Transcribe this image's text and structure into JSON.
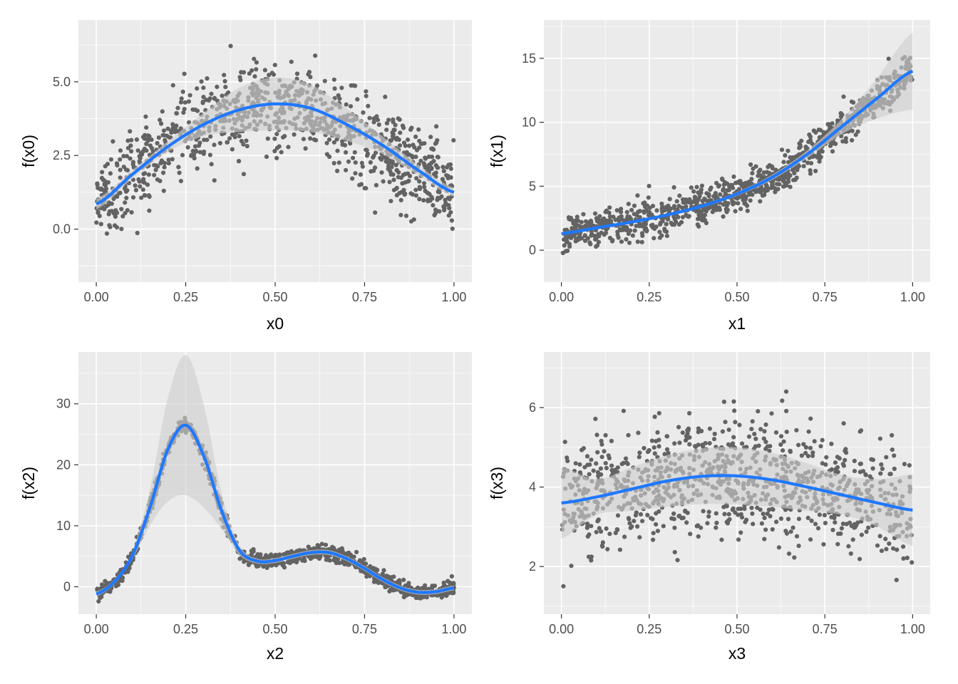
{
  "colors": {
    "panel_bg": "#EBEBEB",
    "grid_major": "#FFFFFF",
    "points": "#636363",
    "smooth_line": "#1F78FF",
    "ci_band": "#CFCFCF",
    "tick_text": "#4D4D4D",
    "tick_mark": "#333333"
  },
  "chart_data": [
    {
      "type": "scatter",
      "xlabel": "x0",
      "ylabel": "f(x0)",
      "xlim": [
        -0.05,
        1.05
      ],
      "ylim": [
        -1.8,
        7.1
      ],
      "x_ticks": [
        0,
        0.25,
        0.5,
        0.75,
        1
      ],
      "x_tick_labels": [
        "0.00",
        "0.25",
        "0.50",
        "0.75",
        "1.00"
      ],
      "y_ticks": [
        0,
        2.5,
        5
      ],
      "y_tick_labels": [
        "0.0",
        "2.5",
        "5.0"
      ],
      "n_points": 1000,
      "grid": true,
      "point_spread_sd": 0.75,
      "smooth": {
        "method": "loess",
        "x": [
          0,
          0.1,
          0.2,
          0.3,
          0.4,
          0.5,
          0.6,
          0.7,
          0.8,
          0.9,
          1.0
        ],
        "y": [
          0.85,
          1.85,
          2.8,
          3.55,
          4.05,
          4.25,
          4.1,
          3.55,
          2.85,
          2.0,
          1.25
        ],
        "ci_halfwidth": [
          0.18,
          0.15,
          0.18,
          0.4,
          0.75,
          0.9,
          0.8,
          0.55,
          0.3,
          0.18,
          0.15
        ]
      }
    },
    {
      "type": "scatter",
      "xlabel": "x1",
      "ylabel": "f(x1)",
      "xlim": [
        -0.05,
        1.05
      ],
      "ylim": [
        -2.5,
        18.0
      ],
      "x_ticks": [
        0,
        0.25,
        0.5,
        0.75,
        1
      ],
      "x_tick_labels": [
        "0.00",
        "0.25",
        "0.50",
        "0.75",
        "1.00"
      ],
      "y_ticks": [
        0,
        5,
        10,
        15
      ],
      "y_tick_labels": [
        "0",
        "5",
        "10",
        "15"
      ],
      "n_points": 1000,
      "grid": true,
      "point_spread_sd": 0.7,
      "smooth": {
        "method": "loess",
        "x": [
          0,
          0.1,
          0.2,
          0.3,
          0.4,
          0.5,
          0.6,
          0.7,
          0.8,
          0.9,
          1.0
        ],
        "y": [
          1.3,
          1.75,
          2.2,
          2.75,
          3.45,
          4.4,
          5.7,
          7.5,
          9.7,
          11.9,
          14.0
        ],
        "ci_halfwidth": [
          0.12,
          0.1,
          0.1,
          0.1,
          0.12,
          0.15,
          0.2,
          0.3,
          0.6,
          1.6,
          3.0
        ]
      }
    },
    {
      "type": "scatter",
      "xlabel": "x2",
      "ylabel": "f(x2)",
      "xlim": [
        -0.05,
        1.05
      ],
      "ylim": [
        -4.5,
        38.5
      ],
      "x_ticks": [
        0,
        0.25,
        0.5,
        0.75,
        1
      ],
      "x_tick_labels": [
        "0.00",
        "0.25",
        "0.50",
        "0.75",
        "1.00"
      ],
      "y_ticks": [
        0,
        10,
        20,
        30
      ],
      "y_tick_labels": [
        "0",
        "10",
        "20",
        "30"
      ],
      "n_points": 1000,
      "grid": true,
      "point_spread_sd": 0.6,
      "smooth": {
        "method": "loess",
        "x": [
          0,
          0.05,
          0.1,
          0.15,
          0.2,
          0.25,
          0.3,
          0.35,
          0.4,
          0.45,
          0.5,
          0.55,
          0.6,
          0.65,
          0.7,
          0.75,
          0.8,
          0.85,
          0.9,
          0.95,
          1.0
        ],
        "y": [
          -1.2,
          0.8,
          5.0,
          13.0,
          22.5,
          26.5,
          21.5,
          12.5,
          6.0,
          4.2,
          4.3,
          5.0,
          5.6,
          5.6,
          4.6,
          3.0,
          1.2,
          -0.2,
          -0.9,
          -0.8,
          -0.2
        ],
        "ci_halfwidth": [
          0.4,
          0.4,
          0.6,
          3.0,
          8.5,
          11.5,
          8.5,
          3.0,
          0.8,
          0.4,
          0.4,
          0.4,
          0.4,
          0.4,
          0.4,
          0.4,
          0.4,
          0.4,
          0.4,
          0.4,
          0.4
        ]
      }
    },
    {
      "type": "scatter",
      "xlabel": "x3",
      "ylabel": "f(x3)",
      "xlim": [
        -0.05,
        1.05
      ],
      "ylim": [
        0.8,
        7.4
      ],
      "x_ticks": [
        0,
        0.25,
        0.5,
        0.75,
        1
      ],
      "x_tick_labels": [
        "0.00",
        "0.25",
        "0.50",
        "0.75",
        "1.00"
      ],
      "y_ticks": [
        2,
        4,
        6
      ],
      "y_tick_labels": [
        "2",
        "4",
        "6"
      ],
      "n_points": 1000,
      "grid": true,
      "point_spread_sd": 0.72,
      "smooth": {
        "method": "loess",
        "x": [
          0,
          0.1,
          0.2,
          0.3,
          0.4,
          0.5,
          0.6,
          0.7,
          0.8,
          0.9,
          1.0
        ],
        "y": [
          3.6,
          3.75,
          3.95,
          4.15,
          4.27,
          4.28,
          4.18,
          4.0,
          3.8,
          3.6,
          3.42
        ],
        "ci_halfwidth": [
          0.9,
          0.45,
          0.55,
          0.65,
          0.7,
          0.72,
          0.68,
          0.6,
          0.5,
          0.6,
          0.9
        ]
      }
    }
  ]
}
